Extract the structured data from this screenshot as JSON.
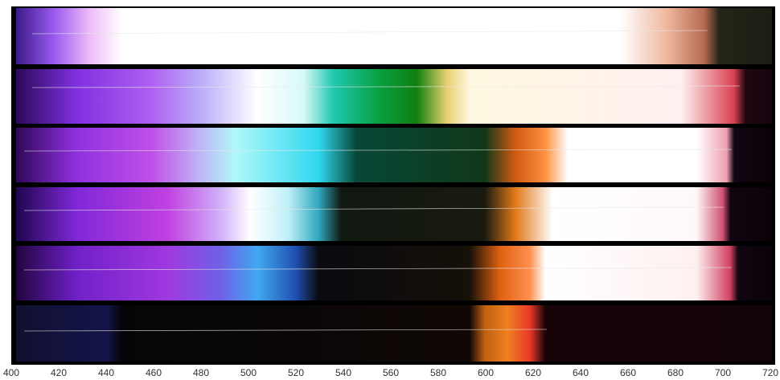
{
  "chart_data": {
    "type": "image",
    "xlim": [
      400,
      720
    ],
    "xticks": [
      400,
      420,
      440,
      460,
      480,
      500,
      520,
      540,
      560,
      580,
      600,
      620,
      640,
      660,
      680,
      700,
      720
    ]
  }
}
